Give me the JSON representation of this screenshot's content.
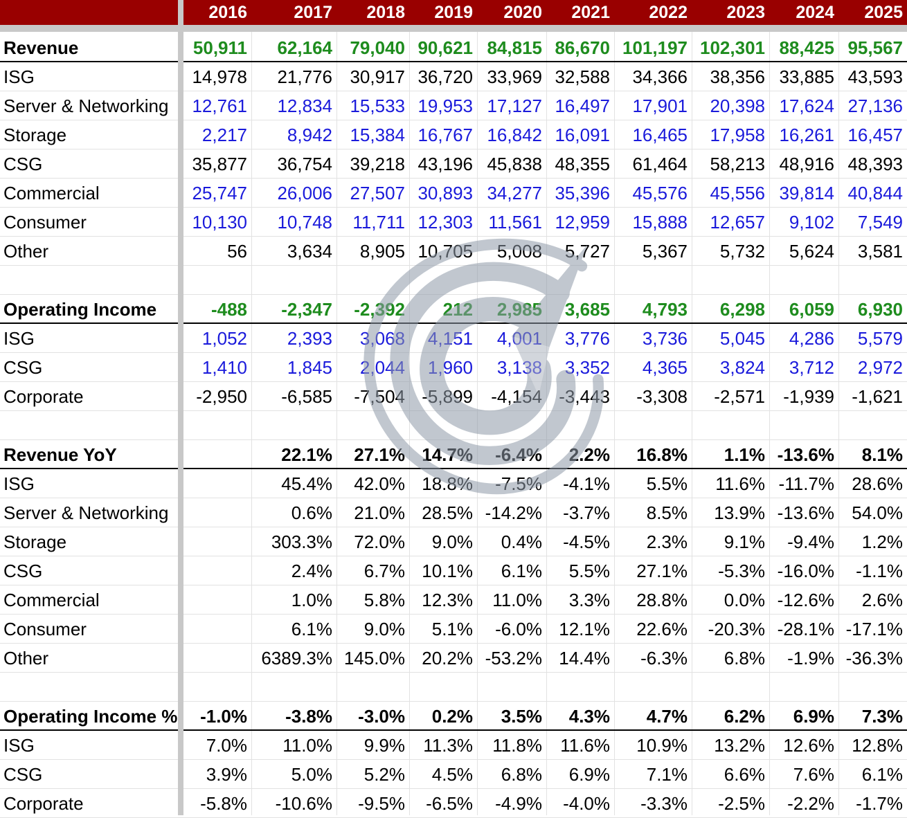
{
  "years": [
    "2016",
    "2017",
    "2018",
    "2019",
    "2020",
    "2021",
    "2022",
    "2023",
    "2024",
    "2025"
  ],
  "colors": {
    "header_bg": "#990000",
    "header_text": "#ffffff",
    "green": "#1e8c1e",
    "blue": "#1a1adb",
    "black": "#000000"
  },
  "watermark_icon": "swirl-logo-icon",
  "rows": [
    {
      "label": "Revenue",
      "style": "total",
      "values": [
        "50,911",
        "62,164",
        "79,040",
        "90,621",
        "84,815",
        "86,670",
        "101,197",
        "102,301",
        "88,425",
        "95,567"
      ]
    },
    {
      "label": "ISG",
      "style": "sub",
      "values": [
        "14,978",
        "21,776",
        "30,917",
        "36,720",
        "33,969",
        "32,588",
        "34,366",
        "38,356",
        "33,885",
        "43,593"
      ]
    },
    {
      "label": "Server & Networking",
      "style": "input",
      "values": [
        "12,761",
        "12,834",
        "15,533",
        "19,953",
        "17,127",
        "16,497",
        "17,901",
        "20,398",
        "17,624",
        "27,136"
      ]
    },
    {
      "label": "Storage",
      "style": "input",
      "values": [
        "2,217",
        "8,942",
        "15,384",
        "16,767",
        "16,842",
        "16,091",
        "16,465",
        "17,958",
        "16,261",
        "16,457"
      ]
    },
    {
      "label": "CSG",
      "style": "sub",
      "values": [
        "35,877",
        "36,754",
        "39,218",
        "43,196",
        "45,838",
        "48,355",
        "61,464",
        "58,213",
        "48,916",
        "48,393"
      ]
    },
    {
      "label": "Commercial",
      "style": "input",
      "values": [
        "25,747",
        "26,006",
        "27,507",
        "30,893",
        "34,277",
        "35,396",
        "45,576",
        "45,556",
        "39,814",
        "40,844"
      ]
    },
    {
      "label": "Consumer",
      "style": "input",
      "values": [
        "10,130",
        "10,748",
        "11,711",
        "12,303",
        "11,561",
        "12,959",
        "15,888",
        "12,657",
        "9,102",
        "7,549"
      ]
    },
    {
      "label": "Other",
      "style": "sub",
      "values": [
        "56",
        "3,634",
        "8,905",
        "10,705",
        "5,008",
        "5,727",
        "5,367",
        "5,732",
        "5,624",
        "3,581"
      ]
    },
    {
      "label": "",
      "style": "blank",
      "values": [
        "",
        "",
        "",
        "",
        "",
        "",
        "",
        "",
        "",
        ""
      ]
    },
    {
      "label": "Operating Income",
      "style": "total",
      "values": [
        "-488",
        "-2,347",
        "-2,392",
        "212",
        "2,985",
        "3,685",
        "4,793",
        "6,298",
        "6,059",
        "6,930"
      ]
    },
    {
      "label": "ISG",
      "style": "input",
      "values": [
        "1,052",
        "2,393",
        "3,068",
        "4,151",
        "4,001",
        "3,776",
        "3,736",
        "5,045",
        "4,286",
        "5,579"
      ]
    },
    {
      "label": "CSG",
      "style": "input",
      "values": [
        "1,410",
        "1,845",
        "2,044",
        "1,960",
        "3,138",
        "3,352",
        "4,365",
        "3,824",
        "3,712",
        "2,972"
      ]
    },
    {
      "label": "Corporate",
      "style": "sub",
      "values": [
        "-2,950",
        "-6,585",
        "-7,504",
        "-5,899",
        "-4,154",
        "-3,443",
        "-3,308",
        "-2,571",
        "-1,939",
        "-1,621"
      ]
    },
    {
      "label": "",
      "style": "blank",
      "values": [
        "",
        "",
        "",
        "",
        "",
        "",
        "",
        "",
        "",
        ""
      ]
    },
    {
      "label": "Revenue YoY",
      "style": "pct-total",
      "values": [
        "",
        "22.1%",
        "27.1%",
        "14.7%",
        "-6.4%",
        "2.2%",
        "16.8%",
        "1.1%",
        "-13.6%",
        "8.1%"
      ]
    },
    {
      "label": "ISG",
      "style": "sub",
      "values": [
        "",
        "45.4%",
        "42.0%",
        "18.8%",
        "-7.5%",
        "-4.1%",
        "5.5%",
        "11.6%",
        "-11.7%",
        "28.6%"
      ]
    },
    {
      "label": "Server & Networking",
      "style": "sub",
      "values": [
        "",
        "0.6%",
        "21.0%",
        "28.5%",
        "-14.2%",
        "-3.7%",
        "8.5%",
        "13.9%",
        "-13.6%",
        "54.0%"
      ]
    },
    {
      "label": "Storage",
      "style": "sub",
      "values": [
        "",
        "303.3%",
        "72.0%",
        "9.0%",
        "0.4%",
        "-4.5%",
        "2.3%",
        "9.1%",
        "-9.4%",
        "1.2%"
      ]
    },
    {
      "label": "CSG",
      "style": "sub",
      "values": [
        "",
        "2.4%",
        "6.7%",
        "10.1%",
        "6.1%",
        "5.5%",
        "27.1%",
        "-5.3%",
        "-16.0%",
        "-1.1%"
      ]
    },
    {
      "label": "Commercial",
      "style": "sub",
      "values": [
        "",
        "1.0%",
        "5.8%",
        "12.3%",
        "11.0%",
        "3.3%",
        "28.8%",
        "0.0%",
        "-12.6%",
        "2.6%"
      ]
    },
    {
      "label": "Consumer",
      "style": "sub",
      "values": [
        "",
        "6.1%",
        "9.0%",
        "5.1%",
        "-6.0%",
        "12.1%",
        "22.6%",
        "-20.3%",
        "-28.1%",
        "-17.1%"
      ]
    },
    {
      "label": "Other",
      "style": "sub",
      "values": [
        "",
        "6389.3%",
        "145.0%",
        "20.2%",
        "-53.2%",
        "14.4%",
        "-6.3%",
        "6.8%",
        "-1.9%",
        "-36.3%"
      ]
    },
    {
      "label": "",
      "style": "blank",
      "values": [
        "",
        "",
        "",
        "",
        "",
        "",
        "",
        "",
        "",
        ""
      ]
    },
    {
      "label": "Operating Income %",
      "style": "pct-total",
      "values": [
        "-1.0%",
        "-3.8%",
        "-3.0%",
        "0.2%",
        "3.5%",
        "4.3%",
        "4.7%",
        "6.2%",
        "6.9%",
        "7.3%"
      ]
    },
    {
      "label": "ISG",
      "style": "sub",
      "values": [
        "7.0%",
        "11.0%",
        "9.9%",
        "11.3%",
        "11.8%",
        "11.6%",
        "10.9%",
        "13.2%",
        "12.6%",
        "12.8%"
      ]
    },
    {
      "label": "CSG",
      "style": "sub",
      "values": [
        "3.9%",
        "5.0%",
        "5.2%",
        "4.5%",
        "6.8%",
        "6.9%",
        "7.1%",
        "6.6%",
        "7.6%",
        "6.1%"
      ]
    },
    {
      "label": "Corporate",
      "style": "sub",
      "values": [
        "-5.8%",
        "-10.6%",
        "-9.5%",
        "-6.5%",
        "-4.9%",
        "-4.0%",
        "-3.3%",
        "-2.5%",
        "-2.2%",
        "-1.7%"
      ]
    }
  ]
}
